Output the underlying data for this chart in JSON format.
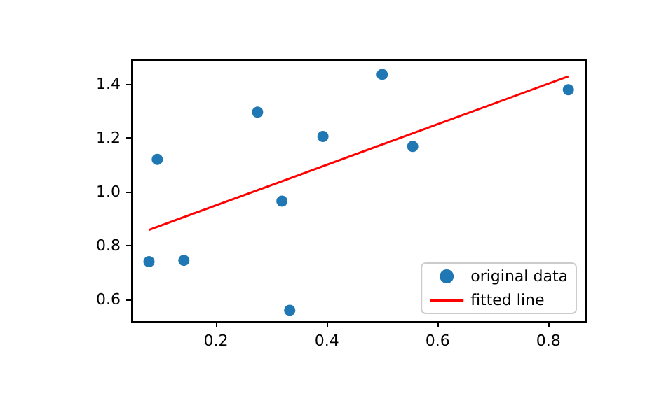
{
  "chart_data": {
    "type": "scatter",
    "xlim": [
      0.048,
      0.868
    ],
    "xticks": [
      0.2,
      0.4,
      0.6,
      0.8
    ],
    "ylim": [
      0.517,
      1.488
    ],
    "yticks": [
      0.6,
      0.8,
      {
        "value": 1,
        "label": "1.0"
      },
      1.2,
      1.4
    ],
    "grid": false,
    "legend": "bottom right",
    "series": [
      {
        "name": "original data",
        "color": "#1f77b4",
        "marker": "circle",
        "x": [
          0.079,
          0.094,
          0.142,
          0.275,
          0.319,
          0.333,
          0.393,
          0.5,
          0.555,
          0.836
        ],
        "values": [
          0.74,
          1.12,
          0.745,
          1.295,
          0.965,
          0.56,
          1.205,
          1.435,
          1.168,
          1.378
        ]
      },
      {
        "name": "fitted line",
        "type": "line",
        "color": "#ff0000",
        "marker": "none",
        "line_style": "solid",
        "x": [
          0.079,
          0.836
        ],
        "values": [
          0.858,
          1.428
        ]
      }
    ]
  }
}
